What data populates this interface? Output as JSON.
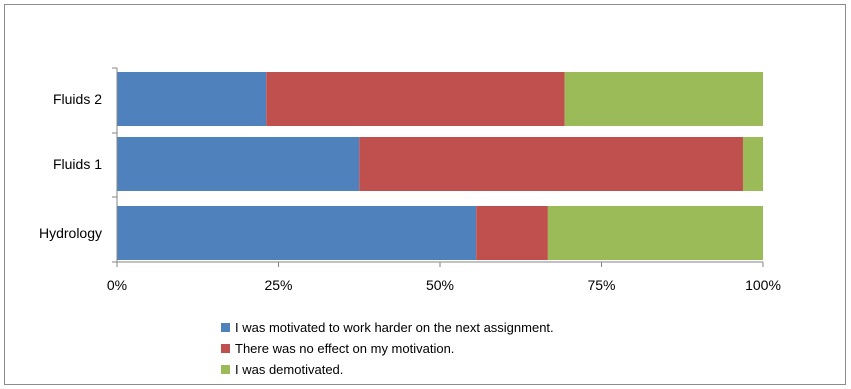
{
  "chart_data": {
    "type": "bar",
    "orientation": "horizontal",
    "stacked": "100%",
    "categories": [
      "Hydrology",
      "Fluids 1",
      "Fluids 2"
    ],
    "series": [
      {
        "name": "I was motivated to work harder on the next assignment.",
        "color": "#4F81BD",
        "values": [
          55.6,
          37.5,
          23.1
        ]
      },
      {
        "name": "There was no effect on my motivation.",
        "color": "#C0504D",
        "values": [
          11.1,
          59.4,
          46.2
        ]
      },
      {
        "name": "I was demotivated.",
        "color": "#9BBB59",
        "values": [
          33.3,
          3.1,
          30.7
        ]
      }
    ],
    "x_ticks": [
      "0%",
      "25%",
      "50%",
      "75%",
      "100%"
    ],
    "xlim": [
      0,
      100
    ],
    "grid": false,
    "legend_position": "bottom"
  }
}
